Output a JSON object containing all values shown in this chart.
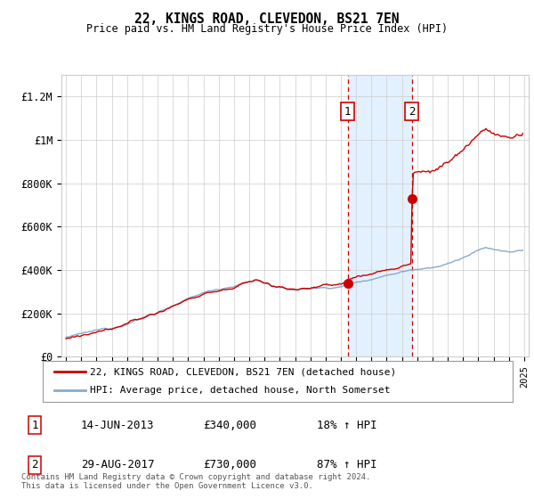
{
  "title": "22, KINGS ROAD, CLEVEDON, BS21 7EN",
  "subtitle": "Price paid vs. HM Land Registry's House Price Index (HPI)",
  "ylabel_ticks": [
    "£0",
    "£200K",
    "£400K",
    "£600K",
    "£800K",
    "£1M",
    "£1.2M"
  ],
  "ytick_values": [
    0,
    200000,
    400000,
    600000,
    800000,
    1000000,
    1200000
  ],
  "ylim": [
    0,
    1300000
  ],
  "xlim_start": 1994.7,
  "xlim_end": 2025.3,
  "transaction1_date": 2013.45,
  "transaction1_price": 340000,
  "transaction2_date": 2017.66,
  "transaction2_price": 730000,
  "line_color_property": "#cc0000",
  "line_color_hpi": "#88aacc",
  "shade_color": "#ddeeff",
  "legend_property": "22, KINGS ROAD, CLEVEDON, BS21 7EN (detached house)",
  "legend_hpi": "HPI: Average price, detached house, North Somerset",
  "table_row1": [
    "1",
    "14-JUN-2013",
    "£340,000",
    "18% ↑ HPI"
  ],
  "table_row2": [
    "2",
    "29-AUG-2017",
    "£730,000",
    "87% ↑ HPI"
  ],
  "footer": "Contains HM Land Registry data © Crown copyright and database right 2024.\nThis data is licensed under the Open Government Licence v3.0.",
  "background_color": "#ffffff",
  "grid_color": "#cccccc"
}
